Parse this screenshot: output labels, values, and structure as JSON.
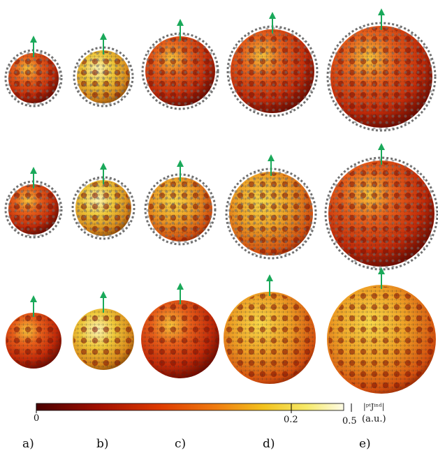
{
  "panels": [
    "a)",
    "b)",
    "c)",
    "d)",
    "e)"
  ],
  "rows": 3,
  "colorbar": {
    "ticks": [
      {
        "label": "0",
        "value": 0.0
      },
      {
        "label": "0.2",
        "value": 0.2
      },
      {
        "label": "0.5",
        "value": 0.5
      }
    ],
    "quantity_label": "|ᵖᵗJⁱⁿᵈ|",
    "unit": "(a.u.)",
    "colors": [
      "#4a0000",
      "#b01500",
      "#e04a00",
      "#f08a10",
      "#f5d020",
      "#fbf6c0",
      "#ffffff"
    ]
  },
  "arrow_color": "#1aa95a",
  "cage_color": "#6e6e6e"
}
